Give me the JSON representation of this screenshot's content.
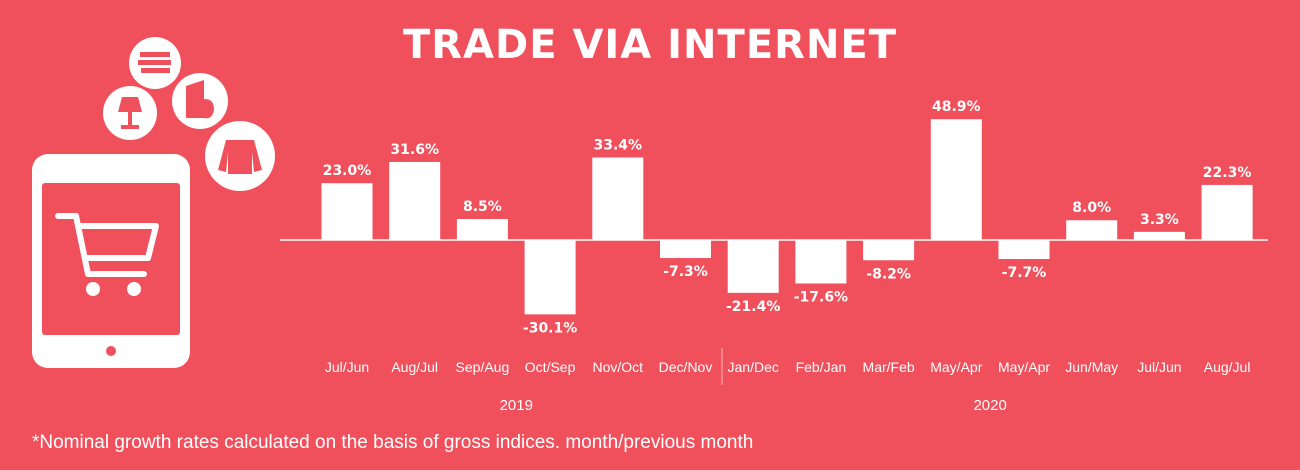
{
  "chart_data": {
    "type": "bar",
    "title": "TRADE VIA INTERNET",
    "categories": [
      "Jul/Jun",
      "Aug/Jul",
      "Sep/Aug",
      "Oct/Sep",
      "Nov/Oct",
      "Dec/Nov",
      "Jan/Dec",
      "Feb/Jan",
      "Mar/Feb",
      "May/Apr",
      "May/Apr",
      "Jun/May",
      "Jul/Jun",
      "Aug/Jul"
    ],
    "values": [
      23.0,
      31.6,
      8.5,
      -30.1,
      33.4,
      -7.3,
      -21.4,
      -17.6,
      -8.2,
      48.9,
      -7.7,
      8.0,
      3.3,
      22.3
    ],
    "value_labels": [
      "23.0%",
      "31.6%",
      "8.5%",
      "-30.1%",
      "33.4%",
      "-7.3%",
      "-21.4%",
      "-17.6%",
      "-8.2%",
      "48.9%",
      "-7.7%",
      "8.0%",
      "3.3%",
      "22.3%"
    ],
    "groups": [
      {
        "label": "2019",
        "count": 6
      },
      {
        "label": "2020",
        "count": 8
      }
    ],
    "xlabel": "",
    "ylabel": "",
    "grid": false,
    "colors": {
      "background": "#f0505c",
      "bars": "#ffffff"
    }
  },
  "footnote": "*Nominal growth rates calculated on the basis of gross indices. month/previous month",
  "illustration": {
    "icons": [
      "tablet-icon",
      "shopping-cart-icon",
      "books-icon",
      "lamp-icon",
      "appliance-icon",
      "sweater-icon"
    ]
  }
}
